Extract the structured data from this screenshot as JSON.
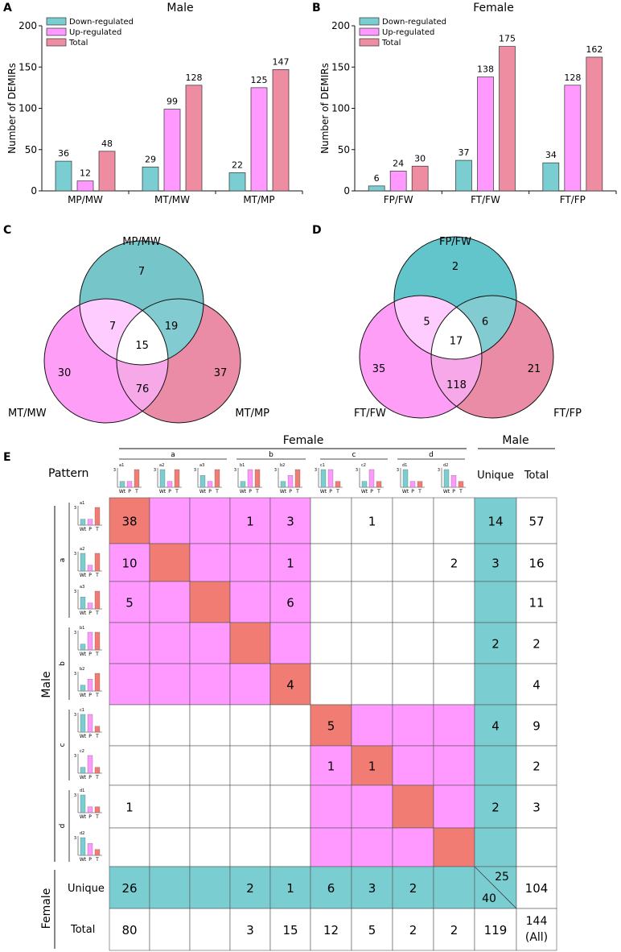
{
  "colors": {
    "teal": "#7ACDD1",
    "teal_dark": "#5EC0C6",
    "pink": "#FF99FF",
    "pink_light": "#FFCCFF",
    "red": "#F07C74",
    "rose": "#EE8CA2",
    "venn_teal": "#76C6C9",
    "venn_pink": "#FF9EF7",
    "venn_rose": "#EA8CA6"
  },
  "chart_data": [
    {
      "panel": "A",
      "type": "bar",
      "title": "Male",
      "ylabel": "Number of DEMIRs",
      "xlabel": "",
      "ylim": [
        0,
        200
      ],
      "yticks": [
        "0",
        "50",
        "100",
        "150",
        "200"
      ],
      "categories": [
        "MP/MW",
        "MT/MW",
        "MT/MP"
      ],
      "legend": [
        "Down-regulated",
        "Up-regulated",
        "Total"
      ],
      "legend_position": "top-left",
      "series": [
        {
          "name": "Down-regulated",
          "values": [
            36,
            29,
            22
          ],
          "labels": [
            "36",
            "29",
            "22"
          ]
        },
        {
          "name": "Up-regulated",
          "values": [
            12,
            99,
            125
          ],
          "labels": [
            "12",
            "99",
            "125"
          ]
        },
        {
          "name": "Total",
          "values": [
            48,
            128,
            147
          ],
          "labels": [
            "48",
            "128",
            "147"
          ]
        }
      ]
    },
    {
      "panel": "B",
      "type": "bar",
      "title": "Female",
      "ylabel": "Number of DEMIRs",
      "xlabel": "",
      "ylim": [
        0,
        200
      ],
      "yticks": [
        "0",
        "50",
        "100",
        "150",
        "200"
      ],
      "categories": [
        "FP/FW",
        "FT/FW",
        "FT/FP"
      ],
      "legend": [
        "Down-regulated",
        "Up-regulated",
        "Total"
      ],
      "legend_position": "top-left",
      "series": [
        {
          "name": "Down-regulated",
          "values": [
            6,
            37,
            34
          ],
          "labels": [
            "6",
            "37",
            "34"
          ]
        },
        {
          "name": "Up-regulated",
          "values": [
            24,
            138,
            128
          ],
          "labels": [
            "24",
            "138",
            "128"
          ]
        },
        {
          "name": "Total",
          "values": [
            30,
            175,
            162
          ],
          "labels": [
            "30",
            "175",
            "162"
          ]
        }
      ]
    },
    {
      "panel": "C",
      "type": "venn",
      "sets": [
        "MP/MW",
        "MT/MW",
        "MT/MP"
      ],
      "regions": {
        "top_only": "7",
        "left_only": "30",
        "right_only": "37",
        "top_left": "7",
        "top_right": "19",
        "left_right": "76",
        "all": "15"
      }
    },
    {
      "panel": "D",
      "type": "venn",
      "sets": [
        "FP/FW",
        "FT/FW",
        "FT/FP"
      ],
      "regions": {
        "top_only": "2",
        "left_only": "35",
        "right_only": "21",
        "top_left": "5",
        "top_right": "6",
        "left_right": "118",
        "all": "17"
      }
    },
    {
      "panel": "E",
      "type": "table",
      "header_female": "Female",
      "header_male": "Male",
      "header_pattern": "Pattern",
      "header_unique": "Unique",
      "header_total": "Total",
      "side_male": "Male",
      "side_female": "Female",
      "row_unique": "Unique",
      "row_total": "Total",
      "groups": [
        "a",
        "b",
        "c",
        "d"
      ],
      "patterns": [
        "a1",
        "a2",
        "a3",
        "b1",
        "b2",
        "c1",
        "c2",
        "d1",
        "d2"
      ],
      "axis_labels": [
        "Wt",
        "P",
        "T"
      ],
      "mini_tick": "3",
      "mini_values": [
        [
          1,
          1,
          3
        ],
        [
          3,
          1,
          3
        ],
        [
          2,
          1,
          3
        ],
        [
          1,
          3,
          3
        ],
        [
          1,
          2,
          3
        ],
        [
          3,
          3,
          1
        ],
        [
          1,
          3,
          1
        ],
        [
          3,
          1,
          1
        ],
        [
          3,
          2,
          1
        ]
      ],
      "cell_values": [
        [
          "38",
          "",
          "",
          "1",
          "3",
          "",
          "1",
          "",
          ""
        ],
        [
          "10",
          "",
          "",
          "",
          "1",
          "",
          "",
          "",
          "2"
        ],
        [
          "5",
          "",
          "",
          "",
          "6",
          "",
          "",
          "",
          ""
        ],
        [
          "",
          "",
          "",
          "",
          "",
          "",
          "",
          "",
          ""
        ],
        [
          "",
          "",
          "",
          "",
          "4",
          "",
          "",
          "",
          ""
        ],
        [
          "",
          "",
          "",
          "",
          "",
          "5",
          "",
          "",
          ""
        ],
        [
          "",
          "",
          "",
          "",
          "",
          "1",
          "1",
          "",
          ""
        ],
        [
          "1",
          "",
          "",
          "",
          "",
          "",
          "",
          "",
          ""
        ],
        [
          "",
          "",
          "",
          "",
          "",
          "",
          "",
          "",
          ""
        ]
      ],
      "male_unique": [
        "14",
        "3",
        "",
        "2",
        "",
        "4",
        "",
        "2",
        ""
      ],
      "male_total": [
        "57",
        "16",
        "11",
        "2",
        "4",
        "9",
        "2",
        "3",
        ""
      ],
      "female_unique": [
        "26",
        "",
        "",
        "2",
        "1",
        "6",
        "3",
        "2",
        ""
      ],
      "female_total": [
        "80",
        "",
        "",
        "3",
        "15",
        "12",
        "5",
        "2",
        "2"
      ],
      "unique_split_top": "25",
      "unique_split_bottom": "40",
      "female_unique_total": "104",
      "total_unique": "119",
      "total_all_line1": "144",
      "total_all_line2": "(All)"
    }
  ]
}
